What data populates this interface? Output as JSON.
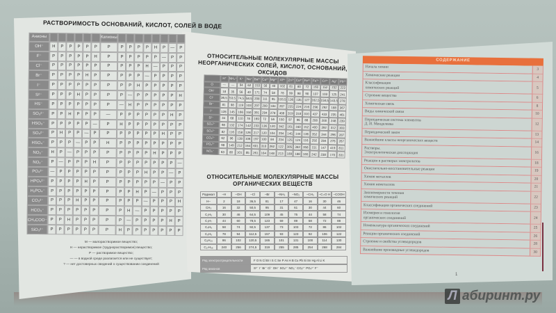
{
  "left_page": {
    "title": "РАСТВОРИМОСТЬ ОСНОВАНИЙ, КИСЛОТ, СОЛЕЙ В ВОДЕ",
    "header_anions": "Анионы",
    "header_cations": "Катионы",
    "anions": [
      "OH⁻",
      "F⁻",
      "Cl⁻",
      "Br⁻",
      "I⁻",
      "S²⁻",
      "HS⁻",
      "SO₃²⁻",
      "HSO₃⁻",
      "SO₄²⁻",
      "HSO₄⁻",
      "NO₃⁻",
      "NO₂⁻",
      "PO₄³⁻",
      "HPO₄²⁻",
      "H₂PO₄⁻",
      "CO₃²⁻",
      "HCO₃⁻",
      "CH₃COO⁻",
      "SiO₃²⁻"
    ],
    "legend": [
      "М — малорастворимое вещество;",
      "Н — нерастворимое (труднорастворимое) вещество;",
      "Р — растворимое вещество;",
      "— — в водной среде разлагается или не существует;",
      "? — нет достоверных сведений о существовании соединений"
    ]
  },
  "middle_page": {
    "title_inorganic": "ОТНОСИТЕЛЬНЫЕ МОЛЕКУЛЯРНЫЕ МАССЫ НЕОРГАНИЧЕСКИХ СОЛЕЙ, КИСЛОТ, ОСНОВАНИЙ, ОКСИДОВ",
    "inorganic": {
      "cations": [
        "H⁺",
        "NH₄⁺",
        "K⁺",
        "Na⁺",
        "Ba²⁺",
        "Ca²⁺",
        "Mg²⁺",
        "Al³⁺",
        "Zn²⁺",
        "Cu²⁺",
        "Fe²⁺",
        "Fe³⁺",
        "Cr³⁺",
        "Ag⁺",
        "Pb²⁺"
      ],
      "rows": [
        {
          "anion": "O",
          "values": [
            "—",
            "—",
            "94",
            "62",
            "153",
            "56",
            "40",
            "102",
            "81",
            "80",
            "72",
            "160",
            "152",
            "232",
            "223"
          ]
        },
        {
          "anion": "OH⁻",
          "values": [
            "18",
            "35",
            "56",
            "40",
            "171",
            "74",
            "58",
            "78",
            "99",
            "98",
            "90",
            "107",
            "103",
            "125",
            "241"
          ]
        },
        {
          "anion": "Cl⁻",
          "values": [
            "36,5",
            "53,5",
            "74,5",
            "58,5",
            "208",
            "111",
            "95",
            "133,5",
            "136",
            "135",
            "127",
            "162,5",
            "158,5",
            "143,5",
            "278"
          ]
        },
        {
          "anion": "Br⁻",
          "values": [
            "81",
            "98",
            "119",
            "103",
            "297",
            "200",
            "184",
            "267",
            "225",
            "224",
            "216",
            "296",
            "292",
            "188",
            "367"
          ]
        },
        {
          "anion": "I⁻",
          "values": [
            "128",
            "145",
            "166",
            "150",
            "391",
            "294",
            "278",
            "408",
            "319",
            "318",
            "310",
            "437",
            "433",
            "235",
            "461"
          ]
        },
        {
          "anion": "S²⁻",
          "values": [
            "34",
            "68",
            "110",
            "78",
            "169",
            "72",
            "56",
            "150",
            "97",
            "96",
            "88",
            "208",
            "200",
            "248",
            "239"
          ]
        },
        {
          "anion": "SO₄²⁻",
          "values": [
            "98",
            "132",
            "174",
            "142",
            "233",
            "136",
            "120",
            "342",
            "161",
            "160",
            "152",
            "400",
            "392",
            "312",
            "303"
          ]
        },
        {
          "anion": "SO₃²⁻",
          "values": [
            "82",
            "116",
            "158",
            "126",
            "217",
            "120",
            "104",
            "294",
            "145",
            "144",
            "136",
            "352",
            "344",
            "296",
            "287"
          ]
        },
        {
          "anion": "CO₃²⁻",
          "values": [
            "62",
            "96",
            "138",
            "106",
            "197",
            "100",
            "84",
            "234",
            "125",
            "124",
            "116",
            "292",
            "284",
            "276",
            "267"
          ]
        },
        {
          "anion": "PO₄³⁻",
          "values": [
            "98",
            "149",
            "212",
            "164",
            "601",
            "310",
            "262",
            "122",
            "385",
            "382",
            "358",
            "151",
            "147",
            "419",
            "811"
          ]
        },
        {
          "anion": "NO₃⁻",
          "values": [
            "63",
            "80",
            "101",
            "85",
            "261",
            "164",
            "148",
            "213",
            "189",
            "188",
            "180",
            "242",
            "238",
            "170",
            "331"
          ]
        }
      ]
    },
    "title_organic": "ОТНОСИТЕЛЬНЫЕ МОЛЕКУЛЯРНЫЕ МАССЫ ОРГАНИЧЕСКИХ ВЕЩЕСТВ",
    "organic": {
      "header": [
        "Радикал",
        "–H",
        "–OH",
        "–Cl",
        "–Br",
        "–NH₂",
        "–NO₂",
        "–CH₃",
        "–C=O H",
        "–COOH"
      ],
      "rows": [
        [
          "H–",
          "2",
          "18",
          "36,5",
          "81",
          "17",
          "47",
          "16",
          "30",
          "46"
        ],
        [
          "CH₃",
          "16",
          "32",
          "50,5",
          "95",
          "31",
          "61",
          "30",
          "44",
          "60"
        ],
        [
          "C₂H₅",
          "30",
          "46",
          "64,5",
          "109",
          "45",
          "75",
          "44",
          "58",
          "74"
        ],
        [
          "C₃H₇",
          "44",
          "60",
          "78,5",
          "123",
          "59",
          "89",
          "58",
          "72",
          "88"
        ],
        [
          "C₄H₉",
          "58",
          "74",
          "92,5",
          "137",
          "73",
          "103",
          "72",
          "86",
          "102"
        ],
        [
          "C₆H₅",
          "78",
          "94",
          "112,5",
          "157",
          "93",
          "123",
          "92",
          "106",
          "122"
        ],
        [
          "C₆H₁₃",
          "86",
          "102",
          "120,5",
          "165",
          "101",
          "131",
          "100",
          "114",
          "130"
        ],
        [
          "C₁₇H₃₅",
          "240",
          "256",
          "274,5",
          "319",
          "255",
          "285",
          "254",
          "268",
          "284"
        ]
      ]
    },
    "series": [
      {
        "label": "Ряд электроотрицательности",
        "value": "F O N Cl Br I S C Se P As H B Cu Pb Si Sn Hg Al Li K"
      },
      {
        "label": "Ряд анионов",
        "value": "S²⁻  I⁻  Br⁻  Cl⁻  OH⁻  SO₄²⁻  NO₃⁻  CO₃²⁻  PO₄³⁻  F⁻"
      }
    ]
  },
  "right_page": {
    "toc_title": "СОДЕРЖАНИЕ",
    "accent": "#e8703c",
    "toc": [
      {
        "title": "Начала химии",
        "page": "3"
      },
      {
        "title": "Химические реакции",
        "page": "4"
      },
      {
        "title": "Классификация\nхимических реакций",
        "page": "5"
      },
      {
        "title": "Строение вещества",
        "page": "6"
      },
      {
        "title": "Химическая связь",
        "page": "8"
      },
      {
        "title": "Виды химической связи",
        "page": "10"
      },
      {
        "title": "Периодическая система элементов\nД. И. Менделеева",
        "page": "12"
      },
      {
        "title": "Периодический закон",
        "page": "13"
      },
      {
        "title": "Важнейшие классы неорганических веществ",
        "page": "14"
      },
      {
        "title": "Растворы.\nЭлектролитическая диссоциация",
        "page": "16"
      },
      {
        "title": "Реакции в растворах электролитов",
        "page": "18"
      },
      {
        "title": "Окислительно-восстановительные реакции",
        "page": "19"
      },
      {
        "title": "Химия металлов",
        "page": "20"
      },
      {
        "title": "Химия неметаллов",
        "page": "21"
      },
      {
        "title": "Закономерности течения\nхимических реакций",
        "page": "22"
      },
      {
        "title": "Классификация органических соединений",
        "page": "23"
      },
      {
        "title": "Изомерия и гомология\nорганических соединений",
        "page": "24"
      },
      {
        "title": "Номенклатура органических соединений",
        "page": "25"
      },
      {
        "title": "Реакции органических соединений",
        "page": "26"
      },
      {
        "title": "Строение и свойства углеводородов",
        "page": "28"
      },
      {
        "title": "Важнейшие производные углеводородов",
        "page": "30"
      }
    ],
    "page_number": "1"
  },
  "watermark": "Лабиринт.ру"
}
